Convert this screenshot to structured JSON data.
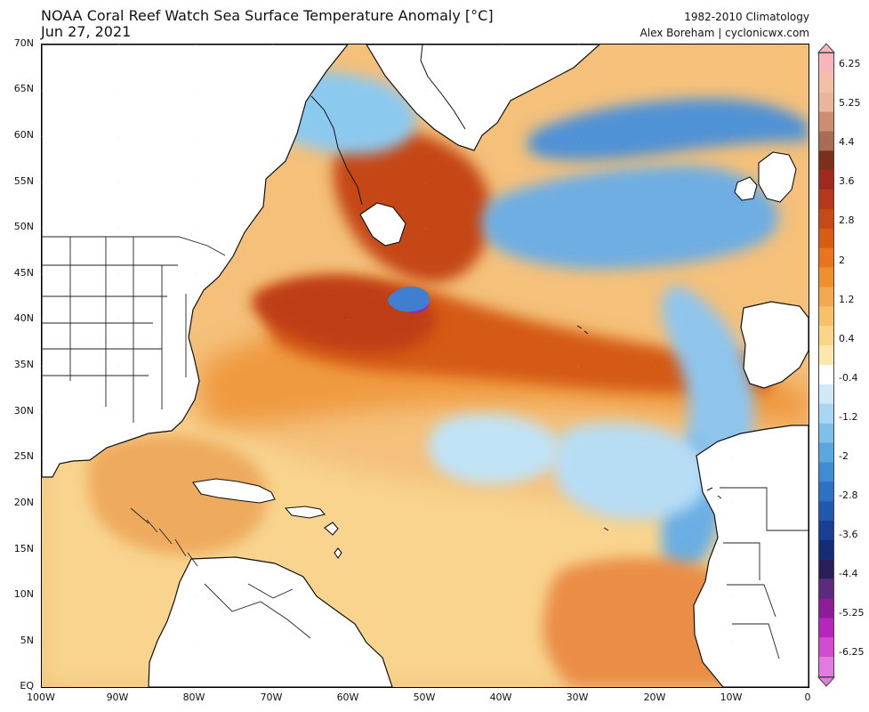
{
  "header": {
    "title": "NOAA Coral Reef Watch Sea Surface Temperature Anomaly [°C]",
    "date": "Jun 27, 2021",
    "climatology": "1982-2010 Climatology",
    "attribution": "Alex Boreham | cyclonicwx.com"
  },
  "map": {
    "latitude_labels": [
      "70N",
      "65N",
      "60N",
      "55N",
      "50N",
      "45N",
      "40N",
      "35N",
      "30N",
      "25N",
      "20N",
      "15N",
      "10N",
      "5N",
      "EQ"
    ],
    "longitude_labels": [
      "100W",
      "90W",
      "80W",
      "70W",
      "60W",
      "50W",
      "40W",
      "30W",
      "20W",
      "10W",
      "0"
    ]
  },
  "colorbar": {
    "labels": [
      "6.25",
      "5.25",
      "4.4",
      "3.6",
      "2.8",
      "2",
      "1.2",
      "0.4",
      "-0.4",
      "-1.2",
      "-2",
      "-2.8",
      "-3.6",
      "-4.4",
      "-5.25",
      "-6.25"
    ],
    "colors": [
      "#f6b6ba",
      "#f3c0a7",
      "#e7b69d",
      "#cf8d70",
      "#a96d55",
      "#7c2f1b",
      "#a1281c",
      "#b43819",
      "#c64a15",
      "#d95d11",
      "#e9741d",
      "#f0902c",
      "#f2a84d",
      "#f6c167",
      "#f9d588",
      "#fbe7aa",
      "#ffffff",
      "#cfe9f8",
      "#a8d7f3",
      "#7fc0ea",
      "#5aa7df",
      "#3e8dd2",
      "#2c72c3",
      "#2157ac",
      "#183f91",
      "#122d75",
      "#2a1f58",
      "#5d2b7d",
      "#8f1d9a",
      "#b526b9",
      "#d14ad0",
      "#e17be2"
    ]
  }
}
